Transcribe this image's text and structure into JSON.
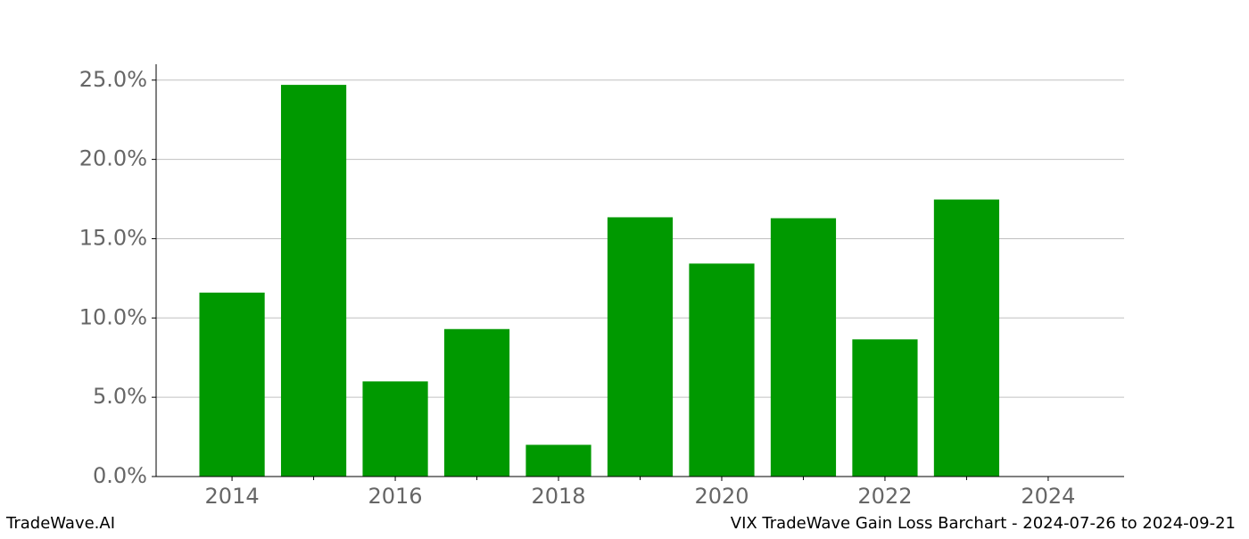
{
  "chart_data": {
    "type": "bar",
    "title": "VIX TradeWave Gain Loss Barchart - 2024-07-26 to 2024-09-21",
    "source": "TradeWave.AI",
    "x": [
      2014,
      2015,
      2016,
      2017,
      2018,
      2019,
      2020,
      2021,
      2022,
      2023
    ],
    "values": [
      11.6,
      24.7,
      6.0,
      9.3,
      2.0,
      16.35,
      13.43,
      16.29,
      8.65,
      17.47
    ],
    "color": "#009900",
    "bar_width": 0.8,
    "xlim": [
      2013.07,
      2024.93
    ],
    "xticks": [
      2014,
      2016,
      2018,
      2020,
      2022,
      2024
    ],
    "xminorticks": [
      2015,
      2017,
      2019,
      2021,
      2023
    ],
    "ylim": [
      0,
      26
    ],
    "yticks": [
      {
        "value": 0,
        "label": "0.0%"
      },
      {
        "value": 5,
        "label": "5.0%"
      },
      {
        "value": 10,
        "label": "10.0%"
      },
      {
        "value": 15,
        "label": "15.0%"
      },
      {
        "value": 20,
        "label": "20.0%"
      },
      {
        "value": 25,
        "label": "25.0%"
      }
    ],
    "grid": true
  }
}
